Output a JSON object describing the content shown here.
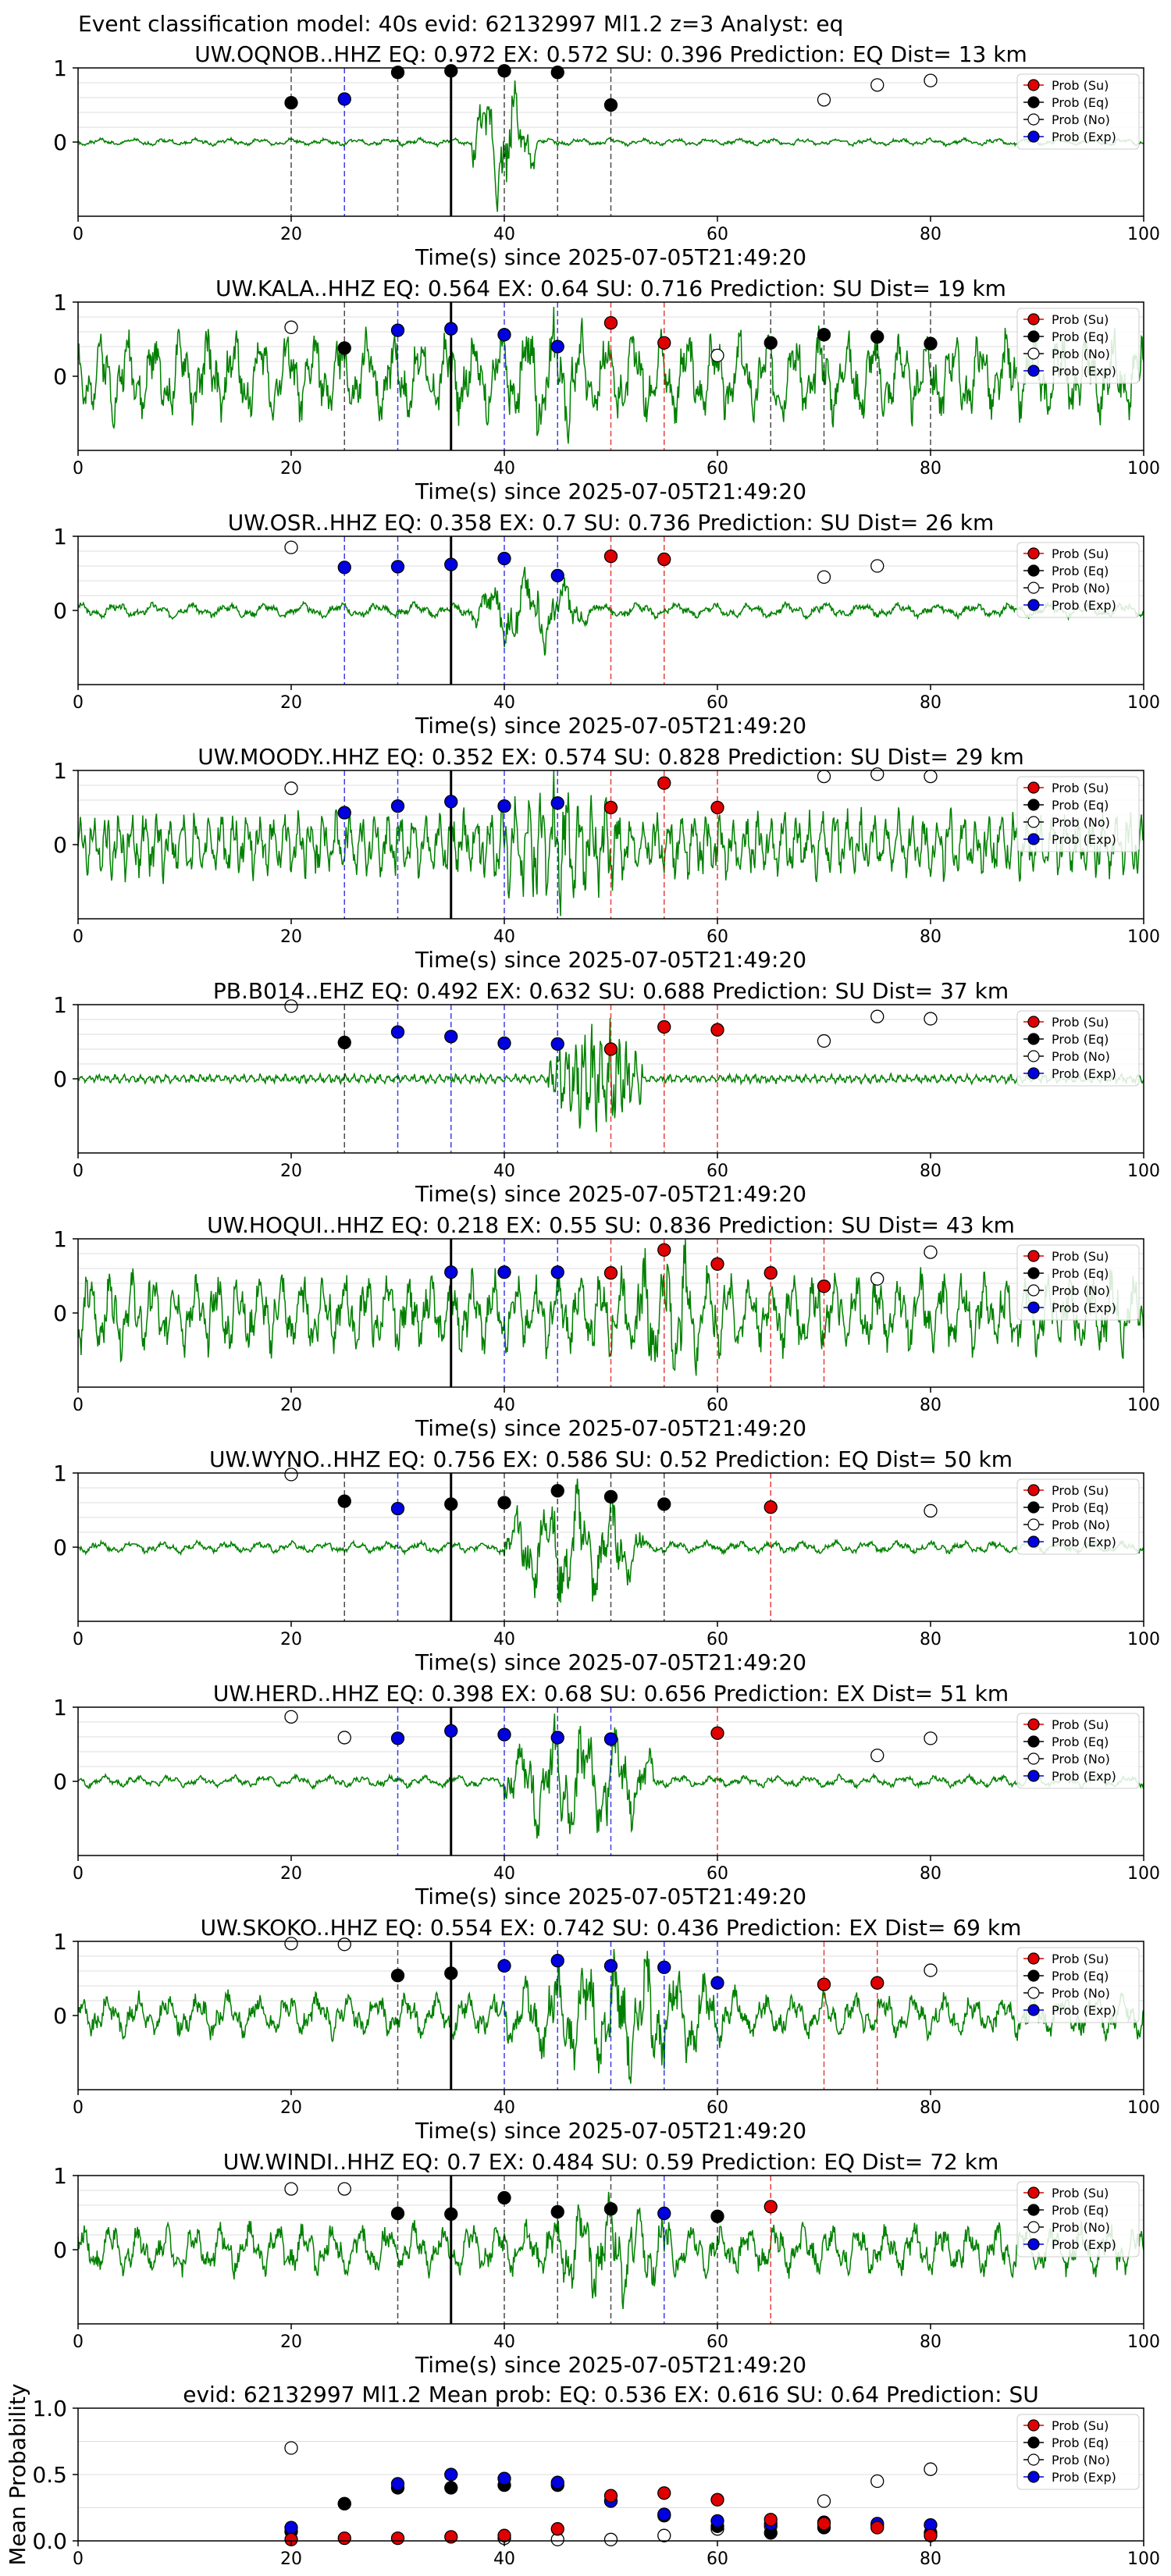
{
  "figure": {
    "title": "Event classification model: 40s evid: 62132997 Ml1.2 z=3 Analyst: eq"
  },
  "legend": {
    "entries": [
      {
        "key": "su",
        "label": "Prob (Su)",
        "color": "#e00000",
        "filled": true
      },
      {
        "key": "eq",
        "label": "Prob (Eq)",
        "color": "#000000",
        "filled": true
      },
      {
        "key": "no",
        "label": "Prob (No)",
        "color": "#ffffff",
        "filled": false
      },
      {
        "key": "exp",
        "label": "Prob (Exp)",
        "color": "#0000e0",
        "filled": true
      }
    ]
  },
  "colors": {
    "trace": "#008000",
    "su": "#e00000",
    "eq": "#000000",
    "exp": "#0000e0",
    "grid": "#dddddd"
  },
  "chart_data": [
    {
      "type": "line",
      "title": "UW.OQNOB..HHZ   EQ: 0.972  EX: 0.572  SU: 0.396   Prediction: EQ    Dist= 13 km",
      "xlabel": "Time(s) since 2025-07-05T21:49:20",
      "xlim": [
        0,
        100
      ],
      "ylim": [
        -1,
        1
      ],
      "xticks": [
        0,
        20,
        40,
        60,
        80,
        100
      ],
      "yticks": [
        1,
        0
      ],
      "origin_time": 35,
      "waveform": {
        "amp": 0.05,
        "burst_start": 37,
        "burst_end": 43,
        "burst_amp": 0.9,
        "seed": 1,
        "period": 3.0
      },
      "points": {
        "eq": [
          [
            20,
            0.53
          ],
          [
            30,
            0.94
          ],
          [
            35,
            0.96
          ],
          [
            40,
            0.96
          ],
          [
            45,
            0.94
          ],
          [
            50,
            0.5
          ]
        ],
        "exp": [
          [
            25,
            0.58
          ]
        ],
        "su": [],
        "no": [
          [
            70,
            0.57
          ],
          [
            75,
            0.77
          ],
          [
            80,
            0.83
          ]
        ]
      }
    },
    {
      "type": "line",
      "title": "UW.KALA..HHZ   EQ: 0.564  EX: 0.64  SU: 0.716   Prediction: SU    Dist= 19 km",
      "xlabel": "Time(s) since 2025-07-05T21:49:20",
      "xlim": [
        0,
        100
      ],
      "ylim": [
        -1,
        1
      ],
      "xticks": [
        0,
        20,
        40,
        60,
        80,
        100
      ],
      "yticks": [
        1,
        0
      ],
      "origin_time": 35,
      "waveform": {
        "amp": 0.6,
        "burst_start": 38,
        "burst_end": 50,
        "burst_amp": 0.9,
        "seed": 2,
        "period": 2.5
      },
      "points": {
        "eq": [
          [
            25,
            0.38
          ],
          [
            65,
            0.45
          ],
          [
            70,
            0.56
          ],
          [
            75,
            0.53
          ],
          [
            80,
            0.44
          ]
        ],
        "exp": [
          [
            30,
            0.62
          ],
          [
            35,
            0.64
          ],
          [
            40,
            0.56
          ],
          [
            45,
            0.4
          ]
        ],
        "su": [
          [
            50,
            0.72
          ],
          [
            55,
            0.45
          ]
        ],
        "no": [
          [
            20,
            0.66
          ],
          [
            60,
            0.28
          ]
        ]
      }
    },
    {
      "type": "line",
      "title": "UW.OSR..HHZ   EQ: 0.358  EX: 0.7  SU: 0.736   Prediction: SU    Dist= 26 km",
      "xlabel": "Time(s) since 2025-07-05T21:49:20",
      "xlim": [
        0,
        100
      ],
      "ylim": [
        -1,
        1
      ],
      "xticks": [
        0,
        20,
        40,
        60,
        80,
        100
      ],
      "yticks": [
        1,
        0
      ],
      "origin_time": 35,
      "waveform": {
        "amp": 0.1,
        "burst_start": 37,
        "burst_end": 48,
        "burst_amp": 0.55,
        "seed": 3,
        "period": 3.5
      },
      "points": {
        "eq": [],
        "exp": [
          [
            25,
            0.58
          ],
          [
            30,
            0.59
          ],
          [
            35,
            0.62
          ],
          [
            40,
            0.7
          ],
          [
            45,
            0.47
          ]
        ],
        "su": [
          [
            50,
            0.73
          ],
          [
            55,
            0.69
          ]
        ],
        "no": [
          [
            20,
            0.85
          ],
          [
            70,
            0.45
          ],
          [
            75,
            0.6
          ]
        ]
      }
    },
    {
      "type": "line",
      "title": "UW.MOODY..HHZ   EQ: 0.352  EX: 0.574  SU: 0.828   Prediction: SU    Dist= 29 km",
      "xlabel": "Time(s) since 2025-07-05T21:49:20",
      "xlim": [
        0,
        100
      ],
      "ylim": [
        -1,
        1
      ],
      "xticks": [
        0,
        20,
        40,
        60,
        80,
        100
      ],
      "yticks": [
        1,
        0
      ],
      "origin_time": 35,
      "waveform": {
        "amp": 0.45,
        "burst_start": 38,
        "burst_end": 52,
        "burst_amp": 0.95,
        "seed": 4,
        "period": 1.2
      },
      "points": {
        "eq": [],
        "exp": [
          [
            25,
            0.43
          ],
          [
            30,
            0.52
          ],
          [
            35,
            0.58
          ],
          [
            40,
            0.52
          ],
          [
            45,
            0.56
          ]
        ],
        "su": [
          [
            50,
            0.5
          ],
          [
            55,
            0.83
          ],
          [
            60,
            0.5
          ]
        ],
        "no": [
          [
            20,
            0.76
          ],
          [
            70,
            0.92
          ],
          [
            75,
            0.95
          ],
          [
            80,
            0.92
          ]
        ]
      }
    },
    {
      "type": "line",
      "title": "PB.B014..EHZ   EQ: 0.492  EX: 0.632  SU: 0.688   Prediction: SU    Dist= 37 km",
      "xlabel": "Time(s) since 2025-07-05T21:49:20",
      "xlim": [
        0,
        100
      ],
      "ylim": [
        -1,
        1
      ],
      "xticks": [
        0,
        20,
        40,
        60,
        80,
        100
      ],
      "yticks": [
        1,
        0
      ],
      "origin_time": null,
      "waveform": {
        "amp": 0.06,
        "burst_start": 44,
        "burst_end": 53,
        "burst_amp": 0.8,
        "seed": 5,
        "period": 0.8
      },
      "points": {
        "eq": [
          [
            25,
            0.49
          ]
        ],
        "exp": [
          [
            30,
            0.63
          ],
          [
            35,
            0.57
          ],
          [
            40,
            0.48
          ],
          [
            45,
            0.47
          ]
        ],
        "su": [
          [
            50,
            0.4
          ],
          [
            55,
            0.7
          ],
          [
            60,
            0.66
          ]
        ],
        "no": [
          [
            20,
            0.98
          ],
          [
            70,
            0.51
          ],
          [
            75,
            0.84
          ],
          [
            80,
            0.81
          ]
        ]
      }
    },
    {
      "type": "line",
      "title": "UW.HOQUI..HHZ   EQ: 0.218  EX: 0.55  SU: 0.836   Prediction: SU    Dist= 43 km",
      "xlabel": "Time(s) since 2025-07-05T21:49:20",
      "xlim": [
        0,
        100
      ],
      "ylim": [
        -1,
        1
      ],
      "xticks": [
        0,
        20,
        40,
        60,
        80,
        100
      ],
      "yticks": [
        1,
        0
      ],
      "origin_time": 35,
      "waveform": {
        "amp": 0.55,
        "burst_start": 49,
        "burst_end": 62,
        "burst_amp": 0.95,
        "seed": 6,
        "period": 2.0
      },
      "points": {
        "eq": [],
        "exp": [
          [
            35,
            0.55
          ],
          [
            40,
            0.55
          ],
          [
            45,
            0.55
          ]
        ],
        "su": [
          [
            50,
            0.54
          ],
          [
            55,
            0.85
          ],
          [
            60,
            0.66
          ],
          [
            65,
            0.54
          ],
          [
            70,
            0.36
          ]
        ],
        "no": [
          [
            75,
            0.46
          ],
          [
            80,
            0.82
          ]
        ]
      }
    },
    {
      "type": "line",
      "title": "UW.WYNO..HHZ   EQ: 0.756  EX: 0.586  SU: 0.52   Prediction: EQ    Dist= 50 km",
      "xlabel": "Time(s) since 2025-07-05T21:49:20",
      "xlim": [
        0,
        100
      ],
      "ylim": [
        -1,
        1
      ],
      "xticks": [
        0,
        20,
        40,
        60,
        80,
        100
      ],
      "yticks": [
        1,
        0
      ],
      "origin_time": 35,
      "waveform": {
        "amp": 0.08,
        "burst_start": 40,
        "burst_end": 53,
        "burst_amp": 0.85,
        "seed": 7,
        "period": 3.0
      },
      "points": {
        "eq": [
          [
            25,
            0.62
          ],
          [
            35,
            0.58
          ],
          [
            40,
            0.6
          ],
          [
            45,
            0.76
          ],
          [
            50,
            0.68
          ],
          [
            55,
            0.58
          ]
        ],
        "exp": [
          [
            30,
            0.52
          ]
        ],
        "su": [
          [
            65,
            0.54
          ]
        ],
        "no": [
          [
            20,
            0.98
          ],
          [
            80,
            0.49
          ]
        ]
      }
    },
    {
      "type": "line",
      "title": "UW.HERD..HHZ   EQ: 0.398  EX: 0.68  SU: 0.656   Prediction: EX    Dist= 51 km",
      "xlabel": "Time(s) since 2025-07-05T21:49:20",
      "xlim": [
        0,
        100
      ],
      "ylim": [
        -1,
        1
      ],
      "xticks": [
        0,
        20,
        40,
        60,
        80,
        100
      ],
      "yticks": [
        1,
        0
      ],
      "origin_time": 35,
      "waveform": {
        "amp": 0.08,
        "burst_start": 40,
        "burst_end": 54,
        "burst_amp": 0.9,
        "seed": 8,
        "period": 3.0
      },
      "points": {
        "eq": [],
        "exp": [
          [
            30,
            0.58
          ],
          [
            35,
            0.68
          ],
          [
            40,
            0.63
          ],
          [
            45,
            0.59
          ],
          [
            50,
            0.57
          ]
        ],
        "su": [
          [
            60,
            0.65
          ]
        ],
        "no": [
          [
            20,
            0.87
          ],
          [
            25,
            0.59
          ],
          [
            75,
            0.35
          ],
          [
            80,
            0.58
          ]
        ]
      }
    },
    {
      "type": "line",
      "title": "UW.SKOKO..HHZ   EQ: 0.554  EX: 0.742  SU: 0.436   Prediction: EX    Dist= 69 km",
      "xlabel": "Time(s) since 2025-07-05T21:49:20",
      "xlim": [
        0,
        100
      ],
      "ylim": [
        -1,
        1
      ],
      "xticks": [
        0,
        20,
        40,
        60,
        80,
        100
      ],
      "yticks": [
        1,
        0
      ],
      "origin_time": 35,
      "waveform": {
        "amp": 0.3,
        "burst_start": 40,
        "burst_end": 62,
        "burst_amp": 0.9,
        "seed": 9,
        "period": 2.8
      },
      "points": {
        "eq": [
          [
            30,
            0.54
          ],
          [
            35,
            0.57
          ]
        ],
        "exp": [
          [
            40,
            0.67
          ],
          [
            45,
            0.74
          ],
          [
            50,
            0.67
          ],
          [
            55,
            0.65
          ],
          [
            60,
            0.44
          ]
        ],
        "su": [
          [
            70,
            0.42
          ],
          [
            75,
            0.44
          ]
        ],
        "no": [
          [
            20,
            0.97
          ],
          [
            25,
            0.96
          ],
          [
            80,
            0.61
          ]
        ]
      }
    },
    {
      "type": "line",
      "title": "UW.WINDI..HHZ   EQ: 0.7  EX: 0.484  SU: 0.59   Prediction: EQ    Dist= 72 km",
      "xlabel": "Time(s) since 2025-07-05T21:49:20",
      "xlim": [
        0,
        100
      ],
      "ylim": [
        -1,
        1
      ],
      "xticks": [
        0,
        20,
        40,
        60,
        80,
        100
      ],
      "yticks": [
        1,
        0
      ],
      "origin_time": 35,
      "waveform": {
        "amp": 0.35,
        "burst_start": 43,
        "burst_end": 57,
        "burst_amp": 0.75,
        "seed": 10,
        "period": 2.6
      },
      "points": {
        "eq": [
          [
            30,
            0.49
          ],
          [
            35,
            0.48
          ],
          [
            40,
            0.7
          ],
          [
            45,
            0.51
          ],
          [
            50,
            0.55
          ],
          [
            60,
            0.45
          ]
        ],
        "exp": [
          [
            55,
            0.49
          ]
        ],
        "su": [
          [
            65,
            0.58
          ]
        ],
        "no": [
          [
            20,
            0.82
          ],
          [
            25,
            0.82
          ]
        ]
      }
    },
    {
      "type": "scatter",
      "title": "evid: 62132997  Ml1.2   Mean prob:   EQ: 0.536  EX: 0.616  SU: 0.64   Prediction: SU",
      "xlabel": "",
      "ylabel": "Mean Probability",
      "xlim": [
        0,
        100
      ],
      "ylim": [
        0,
        1
      ],
      "xticks": [
        0,
        20,
        40,
        60,
        80,
        100
      ],
      "yticks": [
        0.0,
        0.5,
        1.0
      ],
      "ytick_labels": [
        "0.0",
        "0.5",
        "1.0"
      ],
      "points": {
        "su": [
          [
            20,
            0.01
          ],
          [
            25,
            0.02
          ],
          [
            30,
            0.02
          ],
          [
            35,
            0.03
          ],
          [
            40,
            0.04
          ],
          [
            45,
            0.09
          ],
          [
            50,
            0.34
          ],
          [
            55,
            0.36
          ],
          [
            60,
            0.31
          ],
          [
            65,
            0.16
          ],
          [
            70,
            0.13
          ],
          [
            75,
            0.1
          ],
          [
            80,
            0.04
          ]
        ],
        "eq": [
          [
            20,
            0.07
          ],
          [
            25,
            0.28
          ],
          [
            30,
            0.4
          ],
          [
            35,
            0.4
          ],
          [
            40,
            0.42
          ],
          [
            45,
            0.42
          ],
          [
            50,
            0.3
          ],
          [
            55,
            0.19
          ],
          [
            60,
            0.11
          ],
          [
            65,
            0.06
          ],
          [
            70,
            0.1
          ],
          [
            75,
            0.12
          ],
          [
            80,
            0.06
          ]
        ],
        "no": [
          [
            20,
            0.7
          ],
          [
            25,
            0.28
          ],
          [
            40,
            0.02
          ],
          [
            45,
            0.01
          ],
          [
            50,
            0.01
          ],
          [
            55,
            0.04
          ],
          [
            60,
            0.09
          ],
          [
            65,
            0.11
          ],
          [
            70,
            0.3
          ],
          [
            75,
            0.45
          ],
          [
            80,
            0.54
          ]
        ],
        "exp": [
          [
            20,
            0.1
          ],
          [
            30,
            0.43
          ],
          [
            35,
            0.5
          ],
          [
            40,
            0.47
          ],
          [
            45,
            0.44
          ],
          [
            50,
            0.3
          ],
          [
            55,
            0.2
          ],
          [
            60,
            0.15
          ],
          [
            65,
            0.13
          ],
          [
            70,
            0.14
          ],
          [
            75,
            0.13
          ],
          [
            80,
            0.12
          ]
        ]
      }
    }
  ]
}
